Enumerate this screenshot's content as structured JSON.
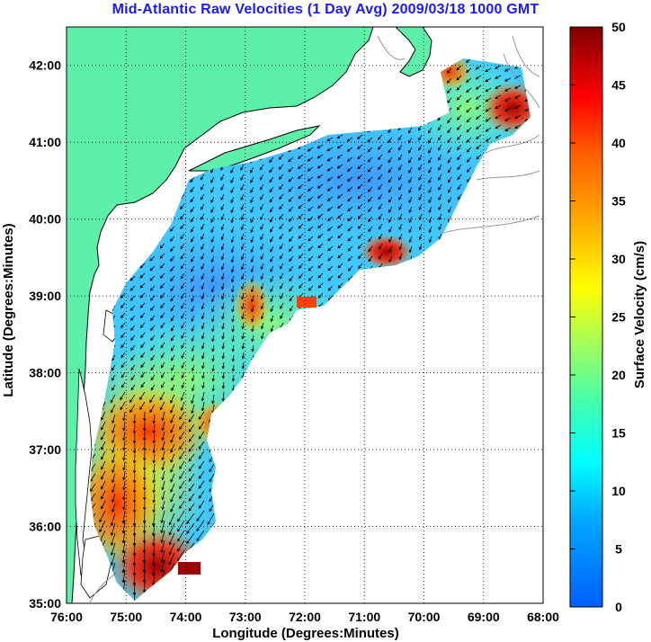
{
  "title": "Mid-Atlantic Raw Velocities (1 Day Avg) 2009/03/18 1000 GMT",
  "axes": {
    "xlabel": "Longitude (Degrees:Minutes)",
    "ylabel": "Latitude (Degrees:Minutes)",
    "x_ticks": [
      "76:00",
      "75:00",
      "74:00",
      "73:00",
      "72:00",
      "71:00",
      "70:00",
      "69:00",
      "68:00"
    ],
    "y_ticks": [
      "35:00",
      "36:00",
      "37:00",
      "38:00",
      "39:00",
      "40:00",
      "41:00",
      "42:00"
    ],
    "xlim": [
      -76,
      -68
    ],
    "ylim": [
      35,
      42.5
    ],
    "grid": true
  },
  "colorbar": {
    "label": "Surface Velocity (cm/s)",
    "ticks": [
      "0",
      "5",
      "10",
      "15",
      "20",
      "25",
      "30",
      "35",
      "40",
      "45",
      "50"
    ],
    "min": 0,
    "max": 50,
    "colormap": "jet"
  },
  "colors": {
    "title": "#1a1aff",
    "land": "#5cf0a8",
    "coast_outline": "#000000",
    "bathymetry": "#999999",
    "vectors": "#000000"
  },
  "chart_data": {
    "type": "heatmap",
    "variable": "surface current speed with direction vectors",
    "units": "cm/s",
    "regions": [
      {
        "lat": 40.5,
        "lon": -70.5,
        "speed": 8
      },
      {
        "lat": 39.8,
        "lon": -72.5,
        "speed": 10
      },
      {
        "lat": 39.0,
        "lon": -73.5,
        "speed": 14
      },
      {
        "lat": 38.4,
        "lon": -74.0,
        "speed": 18
      },
      {
        "lat": 37.5,
        "lon": -74.8,
        "speed": 32
      },
      {
        "lat": 36.8,
        "lon": -75.2,
        "speed": 30
      },
      {
        "lat": 35.7,
        "lon": -74.9,
        "speed": 45
      },
      {
        "lat": 39.5,
        "lon": -70.7,
        "speed": 38
      },
      {
        "lat": 41.3,
        "lon": -68.8,
        "speed": 40
      }
    ]
  }
}
